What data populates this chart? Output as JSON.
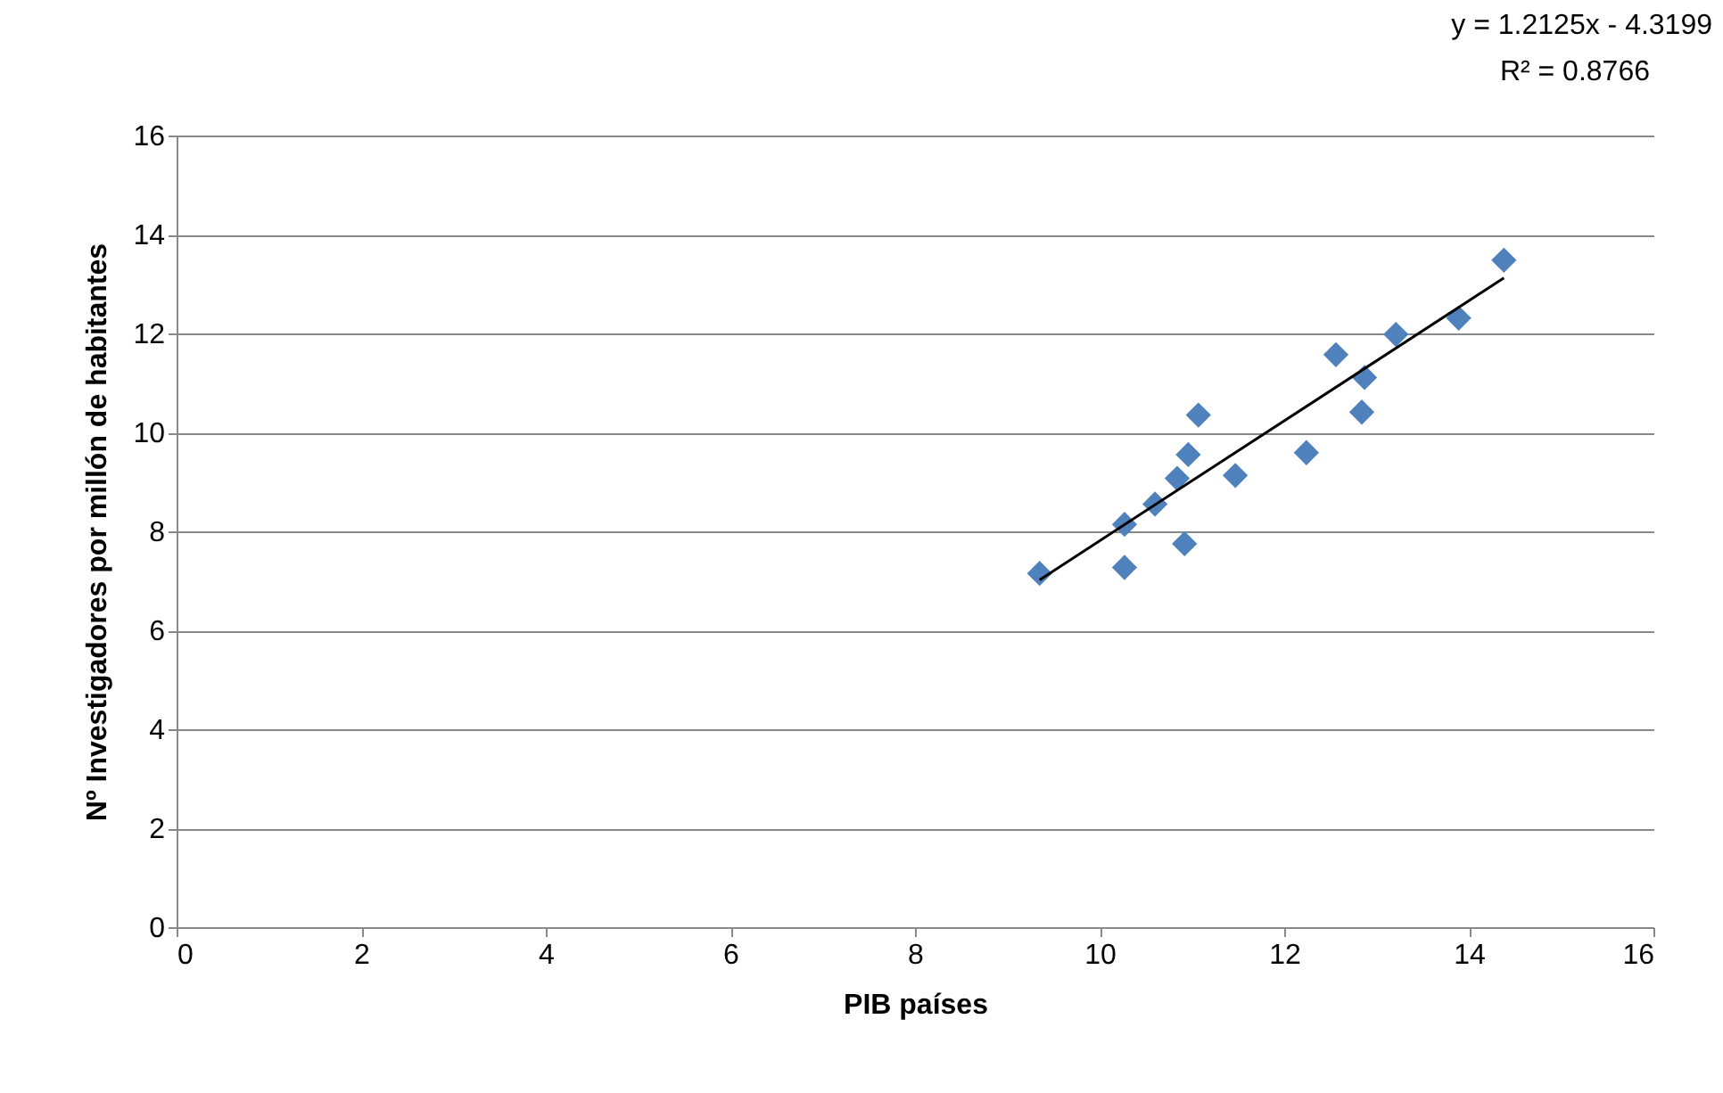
{
  "chart_data": {
    "type": "scatter",
    "xlabel": "PIB países",
    "ylabel": "Nº Investigadores por millón de habitantes",
    "series": [
      {
        "color": "#4f81bd",
        "marker": "diamond",
        "x": [
          9.35,
          10.27,
          10.27,
          10.6,
          10.84,
          10.96,
          10.92,
          11.07,
          11.47,
          12.24,
          12.56,
          12.87,
          12.84,
          13.21,
          13.89,
          14.38
        ],
        "values": [
          7.15,
          8.14,
          7.27,
          8.55,
          9.07,
          9.55,
          7.75,
          10.35,
          9.13,
          9.59,
          11.57,
          11.11,
          10.41,
          11.98,
          12.31,
          13.48
        ]
      },
      {
        "type": "line",
        "color": "#000000",
        "line_style": "solid",
        "x": [
          9.35,
          14.38
        ],
        "values": [
          7.02,
          13.12
        ]
      }
    ],
    "annotations": [
      "y = 1.2125x - 4.3199",
      "R² = 0.8766"
    ],
    "xlim": [
      0,
      16
    ],
    "xticks": [
      0,
      2,
      4,
      6,
      8,
      10,
      12,
      14,
      16
    ],
    "ylim": [
      0,
      16
    ],
    "yticks": [
      0,
      2,
      4,
      6,
      8,
      10,
      12,
      14,
      16
    ],
    "grid": "y"
  }
}
